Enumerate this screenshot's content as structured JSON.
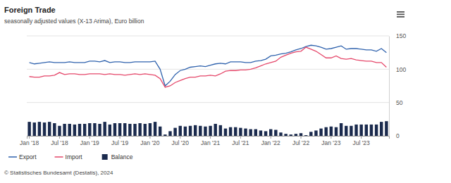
{
  "chart_data": {
    "type": "line",
    "title": "Foreign Trade",
    "subtitle": "seasonally adjusted values (X-13 Arima), Euro billion",
    "source": "© Statistisches Bundesamt (Destatis), 2024",
    "categories": [
      "Jan '18",
      null,
      null,
      null,
      null,
      null,
      "Jul '18",
      null,
      null,
      null,
      null,
      null,
      "Jan '19",
      null,
      null,
      null,
      null,
      null,
      "Jul '19",
      null,
      null,
      null,
      null,
      null,
      "Jan '20",
      null,
      null,
      null,
      null,
      null,
      "Jul '20",
      null,
      null,
      null,
      null,
      null,
      "Jan '21",
      null,
      null,
      null,
      null,
      null,
      "Jul '21",
      null,
      null,
      null,
      null,
      null,
      "Jan '22",
      null,
      null,
      null,
      null,
      null,
      "Jul '22",
      null,
      null,
      null,
      null,
      null,
      "Jan '23",
      null,
      null,
      null,
      null,
      null,
      "Jul '23",
      null,
      null,
      null,
      null,
      null
    ],
    "series": [
      {
        "name": "Export",
        "type": "line",
        "color": "#2f62ad",
        "values": [
          110,
          108,
          109,
          110,
          111,
          110,
          110,
          110,
          111,
          110,
          110,
          110,
          112,
          112,
          111,
          113,
          110,
          111,
          111,
          110,
          110,
          111,
          111,
          111,
          111,
          112,
          100,
          75,
          82,
          92,
          98,
          100,
          103,
          104,
          105,
          104,
          106,
          108,
          109,
          108,
          111,
          111,
          111,
          110,
          110,
          112,
          113,
          115,
          120,
          121,
          123,
          124,
          126,
          129,
          131,
          134,
          136,
          135,
          133,
          130,
          131,
          133,
          135,
          130,
          131,
          131,
          130,
          129,
          129,
          127,
          131,
          125
        ]
      },
      {
        "name": "Import",
        "type": "line",
        "color": "#e5476a",
        "values": [
          89,
          88,
          88,
          90,
          90,
          91,
          95,
          92,
          93,
          93,
          92,
          92,
          93,
          93,
          93,
          92,
          93,
          92,
          92,
          91,
          92,
          93,
          92,
          93,
          92,
          91,
          86,
          73,
          75,
          80,
          83,
          86,
          88,
          88,
          90,
          90,
          91,
          90,
          93,
          97,
          98,
          98,
          99,
          99,
          100,
          102,
          105,
          108,
          110,
          112,
          118,
          121,
          124,
          126,
          127,
          133,
          130,
          127,
          122,
          117,
          117,
          120,
          116,
          115,
          116,
          114,
          113,
          112,
          112,
          110,
          110,
          103
        ]
      },
      {
        "name": "Balance",
        "type": "bar",
        "color": "#1a2a4d",
        "values": [
          21,
          20,
          21,
          20,
          21,
          19,
          15,
          18,
          18,
          17,
          18,
          18,
          19,
          19,
          18,
          21,
          17,
          19,
          19,
          19,
          18,
          18,
          19,
          18,
          19,
          21,
          14,
          2,
          7,
          12,
          15,
          14,
          15,
          16,
          15,
          14,
          15,
          18,
          16,
          11,
          13,
          13,
          12,
          11,
          10,
          10,
          8,
          7,
          10,
          9,
          5,
          3,
          2,
          3,
          4,
          1,
          6,
          8,
          11,
          13,
          14,
          13,
          19,
          15,
          15,
          17,
          17,
          17,
          17,
          17,
          21,
          22
        ]
      }
    ],
    "ylim": [
      0,
      150
    ],
    "yticks": [
      0,
      50,
      100,
      150
    ],
    "grid": true,
    "legend": "bottom"
  }
}
